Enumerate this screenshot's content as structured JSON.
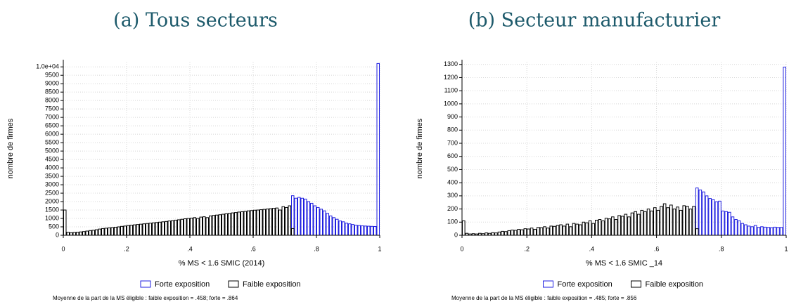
{
  "chart_data": [
    {
      "type": "histogram",
      "title": "(a) Tous secteurs",
      "xlabel": "% MS < 1.6 SMIC (2014)",
      "ylabel": "nombre de firmes",
      "note": "Moyenne de la part de la MS éligible : faible exposition = .458; forte = .864",
      "bins": [
        0,
        0.01,
        0.02,
        0.03,
        0.04,
        0.05,
        0.06,
        0.07,
        0.08,
        0.09,
        0.1,
        0.11,
        0.12,
        0.13,
        0.14,
        0.15,
        0.16,
        0.17,
        0.18,
        0.19,
        0.2,
        0.21,
        0.22,
        0.23,
        0.24,
        0.25,
        0.26,
        0.27,
        0.28,
        0.29,
        0.3,
        0.31,
        0.32,
        0.33,
        0.34,
        0.35,
        0.36,
        0.37,
        0.38,
        0.39,
        0.4,
        0.41,
        0.42,
        0.43,
        0.44,
        0.45,
        0.46,
        0.47,
        0.48,
        0.49,
        0.5,
        0.51,
        0.52,
        0.53,
        0.54,
        0.55,
        0.56,
        0.57,
        0.58,
        0.59,
        0.6,
        0.61,
        0.62,
        0.63,
        0.64,
        0.65,
        0.66,
        0.67,
        0.68,
        0.69,
        0.7,
        0.71,
        0.72,
        0.73,
        0.74,
        0.75,
        0.76,
        0.77,
        0.78,
        0.79,
        0.8,
        0.81,
        0.82,
        0.83,
        0.84,
        0.85,
        0.86,
        0.87,
        0.88,
        0.89,
        0.9,
        0.91,
        0.92,
        0.93,
        0.94,
        0.95,
        0.96,
        0.97,
        0.98,
        0.99,
        1
      ],
      "series": [
        {
          "name": "Forte exposition",
          "color": "#1f1fe0",
          "values": [
            null,
            null,
            null,
            null,
            null,
            null,
            null,
            null,
            null,
            null,
            null,
            null,
            null,
            null,
            null,
            null,
            null,
            null,
            null,
            null,
            null,
            null,
            null,
            null,
            null,
            null,
            null,
            null,
            null,
            null,
            null,
            null,
            null,
            null,
            null,
            null,
            null,
            null,
            null,
            null,
            null,
            null,
            null,
            null,
            null,
            null,
            null,
            null,
            null,
            null,
            null,
            null,
            null,
            null,
            null,
            null,
            null,
            null,
            null,
            null,
            null,
            null,
            null,
            null,
            null,
            null,
            null,
            null,
            null,
            null,
            null,
            null,
            2350,
            2200,
            2250,
            2200,
            2150,
            2000,
            1900,
            1750,
            1650,
            1550,
            1450,
            1300,
            1150,
            1050,
            950,
            850,
            800,
            720,
            680,
            640,
            600,
            580,
            560,
            550,
            540,
            530,
            520,
            10200
          ]
        },
        {
          "name": "Faible exposition",
          "color": "#000000",
          "values": [
            1500,
            180,
            150,
            170,
            180,
            200,
            220,
            250,
            280,
            300,
            330,
            370,
            400,
            420,
            440,
            460,
            480,
            500,
            530,
            550,
            580,
            600,
            620,
            640,
            660,
            680,
            700,
            720,
            740,
            760,
            780,
            800,
            820,
            850,
            870,
            900,
            920,
            950,
            980,
            1000,
            1020,
            1050,
            1000,
            1080,
            1100,
            1050,
            1150,
            1180,
            1200,
            1220,
            1250,
            1280,
            1300,
            1330,
            1350,
            1380,
            1400,
            1420,
            1450,
            1470,
            1490,
            1500,
            1520,
            1540,
            1560,
            1580,
            1600,
            1620,
            1500,
            1700,
            1650,
            1750,
            400,
            null,
            null,
            null,
            null,
            null,
            null,
            null,
            null,
            null,
            null,
            null,
            null,
            null,
            null,
            null,
            null,
            null,
            null,
            null,
            null,
            null,
            null,
            null,
            null,
            null,
            null
          ]
        }
      ],
      "xlim": [
        0,
        1
      ],
      "xticks": [
        0,
        {
          "value": 0.2,
          "label": ".2"
        },
        {
          "value": 0.4,
          "label": ".4"
        },
        {
          "value": 0.6,
          "label": ".6"
        },
        {
          "value": 0.8,
          "label": ".8"
        },
        1
      ],
      "ylim": [
        0,
        10300
      ],
      "yticks": [
        0,
        500,
        1000,
        1500,
        2000,
        2500,
        3000,
        3500,
        4000,
        4500,
        5000,
        5500,
        6000,
        6500,
        7000,
        7500,
        8000,
        8500,
        9000,
        9500,
        {
          "value": 10000,
          "label": "1.0e+04"
        }
      ],
      "grid": true
    },
    {
      "type": "histogram",
      "title": "(b) Secteur manufacturier",
      "xlabel": "% MS < 1.6 SMIC _14",
      "ylabel": "nombre de firmes",
      "note": "Moyenne de la part de la MS éligible : faible exposition = .485; forte = .856",
      "bins": [
        0,
        0.01,
        0.02,
        0.03,
        0.04,
        0.05,
        0.06,
        0.07,
        0.08,
        0.09,
        0.1,
        0.11,
        0.12,
        0.13,
        0.14,
        0.15,
        0.16,
        0.17,
        0.18,
        0.19,
        0.2,
        0.21,
        0.22,
        0.23,
        0.24,
        0.25,
        0.26,
        0.27,
        0.28,
        0.29,
        0.3,
        0.31,
        0.32,
        0.33,
        0.34,
        0.35,
        0.36,
        0.37,
        0.38,
        0.39,
        0.4,
        0.41,
        0.42,
        0.43,
        0.44,
        0.45,
        0.46,
        0.47,
        0.48,
        0.49,
        0.5,
        0.51,
        0.52,
        0.53,
        0.54,
        0.55,
        0.56,
        0.57,
        0.58,
        0.59,
        0.6,
        0.61,
        0.62,
        0.63,
        0.64,
        0.65,
        0.66,
        0.67,
        0.68,
        0.69,
        0.7,
        0.71,
        0.72,
        0.73,
        0.74,
        0.75,
        0.76,
        0.77,
        0.78,
        0.79,
        0.8,
        0.81,
        0.82,
        0.83,
        0.84,
        0.85,
        0.86,
        0.87,
        0.88,
        0.89,
        0.9,
        0.91,
        0.92,
        0.93,
        0.94,
        0.95,
        0.96,
        0.97,
        0.98,
        0.99,
        1
      ],
      "series": [
        {
          "name": "Forte exposition",
          "color": "#1f1fe0",
          "values": [
            null,
            null,
            null,
            null,
            null,
            null,
            null,
            null,
            null,
            null,
            null,
            null,
            null,
            null,
            null,
            null,
            null,
            null,
            null,
            null,
            null,
            null,
            null,
            null,
            null,
            null,
            null,
            null,
            null,
            null,
            null,
            null,
            null,
            null,
            null,
            null,
            null,
            null,
            null,
            null,
            null,
            null,
            null,
            null,
            null,
            null,
            null,
            null,
            null,
            null,
            null,
            null,
            null,
            null,
            null,
            null,
            null,
            null,
            null,
            null,
            null,
            null,
            null,
            null,
            null,
            null,
            null,
            null,
            null,
            null,
            null,
            null,
            360,
            345,
            330,
            300,
            280,
            270,
            255,
            260,
            185,
            180,
            175,
            140,
            120,
            110,
            90,
            80,
            70,
            65,
            75,
            60,
            65,
            62,
            60,
            58,
            62,
            60,
            60,
            1280
          ]
        },
        {
          "name": "Faible exposition",
          "color": "#000000",
          "values": [
            110,
            15,
            10,
            12,
            10,
            15,
            12,
            18,
            15,
            20,
            18,
            25,
            30,
            28,
            35,
            40,
            38,
            45,
            42,
            50,
            48,
            55,
            45,
            60,
            58,
            65,
            55,
            70,
            68,
            75,
            80,
            70,
            85,
            65,
            90,
            85,
            80,
            100,
            95,
            110,
            90,
            115,
            120,
            110,
            130,
            125,
            140,
            120,
            150,
            145,
            160,
            140,
            170,
            180,
            160,
            190,
            180,
            200,
            185,
            210,
            190,
            220,
            240,
            210,
            230,
            200,
            215,
            190,
            225,
            220,
            200,
            220,
            50,
            null,
            null,
            null,
            null,
            null,
            null,
            null,
            null,
            null,
            null,
            null,
            null,
            null,
            null,
            null,
            null,
            null,
            null,
            null,
            null,
            null,
            null,
            null,
            null,
            null,
            null
          ]
        }
      ],
      "xlim": [
        0,
        1
      ],
      "xticks": [
        0,
        {
          "value": 0.2,
          "label": ".2"
        },
        {
          "value": 0.4,
          "label": ".4"
        },
        {
          "value": 0.6,
          "label": ".6"
        },
        {
          "value": 0.8,
          "label": ".8"
        },
        1
      ],
      "ylim": [
        0,
        1320
      ],
      "yticks": [
        0,
        100,
        200,
        300,
        400,
        500,
        600,
        700,
        800,
        900,
        1000,
        1100,
        1200,
        1300
      ],
      "grid": true
    }
  ]
}
